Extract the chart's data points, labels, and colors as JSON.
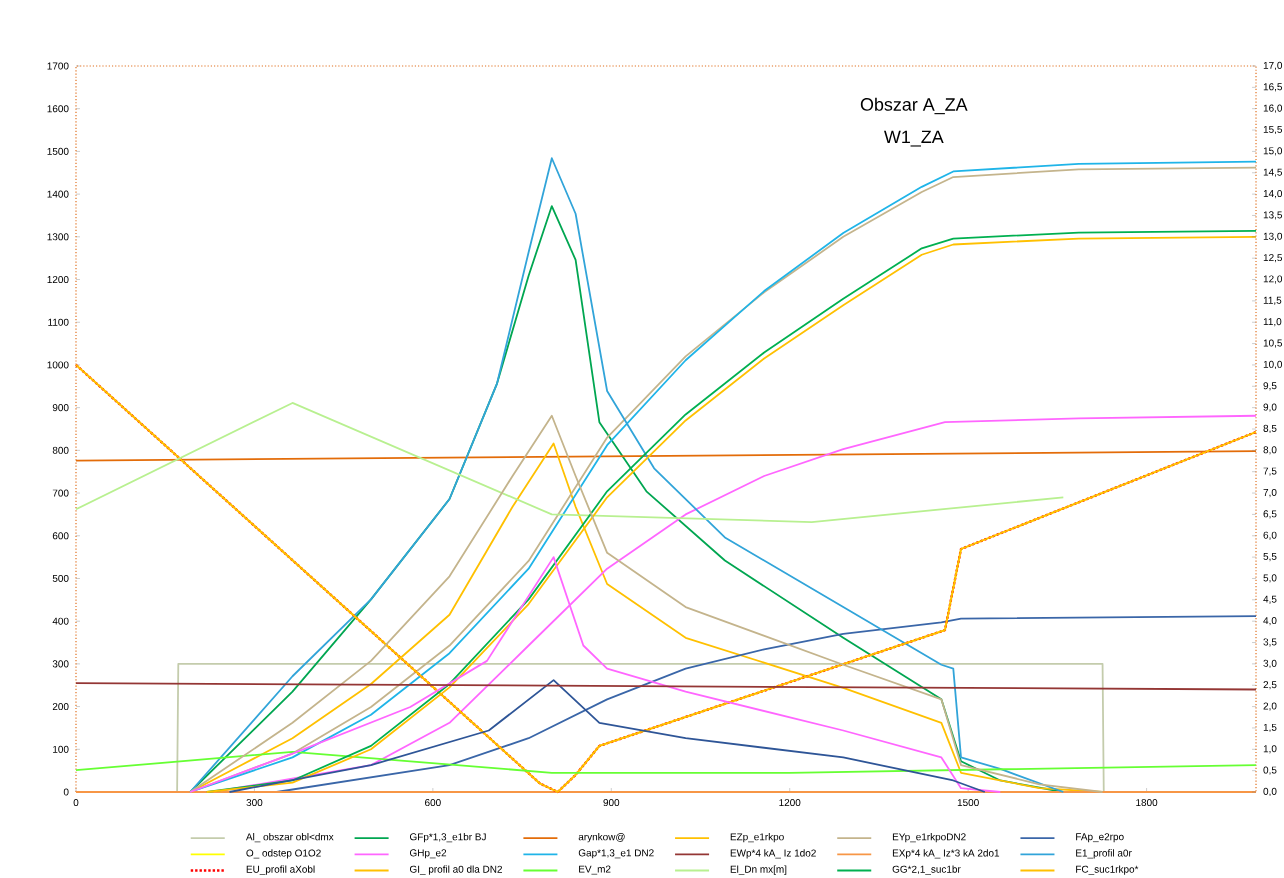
{
  "chart_data": {
    "type": "line",
    "title": "Obszar A_ZA",
    "subtitle": "W1_ZA",
    "legend": "bottom",
    "xlim": [
      0,
      1984
    ],
    "xticks": [
      0,
      300,
      600,
      900,
      1200,
      1500,
      1800
    ],
    "ylim": [
      0,
      1700
    ],
    "yticks": [
      0,
      100,
      200,
      300,
      400,
      500,
      600,
      700,
      800,
      900,
      1000,
      1100,
      1200,
      1300,
      1400,
      1500,
      1600,
      1700
    ],
    "y2lim": [
      0,
      17
    ],
    "y2ticks": [
      {
        "value": 0,
        "label": "0,0"
      },
      {
        "value": 0.5,
        "label": "0,5"
      },
      {
        "value": 1,
        "label": "1,0"
      },
      {
        "value": 1.5,
        "label": "1,5"
      },
      {
        "value": 2,
        "label": "2,0"
      },
      {
        "value": 2.5,
        "label": "2,5"
      },
      {
        "value": 3,
        "label": "3,0"
      },
      {
        "value": 3.5,
        "label": "3,5"
      },
      {
        "value": 4,
        "label": "4,0"
      },
      {
        "value": 4.5,
        "label": "4,5"
      },
      {
        "value": 5,
        "label": "5,0"
      },
      {
        "value": 5.5,
        "label": "5,5"
      },
      {
        "value": 6,
        "label": "6,0"
      },
      {
        "value": 6.5,
        "label": "6,5"
      },
      {
        "value": 7,
        "label": "7,0"
      },
      {
        "value": 7.5,
        "label": "7,5"
      },
      {
        "value": 8,
        "label": "8,0"
      },
      {
        "value": 8.5,
        "label": "8,5"
      },
      {
        "value": 9,
        "label": "9,0"
      },
      {
        "value": 9.5,
        "label": "9,5"
      },
      {
        "value": 10,
        "label": "10,0"
      },
      {
        "value": 10.5,
        "label": "10,5"
      },
      {
        "value": 11,
        "label": "11,0"
      },
      {
        "value": 11.5,
        "label": "11,5"
      },
      {
        "value": 12,
        "label": "12,0"
      },
      {
        "value": 12.5,
        "label": "12,5"
      },
      {
        "value": 13,
        "label": "13,0"
      },
      {
        "value": 13.5,
        "label": "13,5"
      },
      {
        "value": 14,
        "label": "14,0"
      },
      {
        "value": 14.5,
        "label": "14,5"
      },
      {
        "value": 15,
        "label": "15,0"
      },
      {
        "value": 15.5,
        "label": "15,5"
      },
      {
        "value": 16,
        "label": "16,0"
      },
      {
        "value": 16.5,
        "label": "16,5"
      },
      {
        "value": 17,
        "label": "17,0"
      }
    ],
    "series": [
      {
        "name": "Al_ obszar obl<dmx",
        "color": "#c4ccac",
        "x": [
          0,
          170,
          172,
          1726,
          1728,
          1984
        ],
        "values": [
          0,
          0,
          300,
          300,
          0,
          0
        ]
      },
      {
        "name": "GFp*1,3_e1br BJ",
        "color": "#00a651",
        "x": [
          192,
          364,
          496,
          628,
          708,
          761,
          800,
          840,
          880,
          959,
          1091,
          1290,
          1455,
          1488,
          1554,
          1660
        ],
        "values": [
          0,
          235,
          451,
          686,
          957,
          1209,
          1372,
          1246,
          866,
          704,
          542,
          361,
          217,
          72,
          27,
          0
        ]
      },
      {
        "name": "arynkow@",
        "color": "#e36c09",
        "x": [
          0,
          1984
        ],
        "values": [
          776,
          798
        ]
      },
      {
        "name": "EZp_e1rkpo",
        "color": "#ffc000",
        "x": [
          192,
          364,
          496,
          628,
          734,
          803,
          840,
          893,
          1025,
          1290,
          1455,
          1488,
          1620,
          1726
        ],
        "values": [
          0,
          126,
          253,
          415,
          668,
          816,
          668,
          487,
          361,
          244,
          162,
          45,
          9,
          0
        ]
      },
      {
        "name": "EYp_e1rkpoDN2",
        "color": "#c4b48c",
        "x": [
          192,
          364,
          496,
          628,
          761,
          893,
          1025,
          1157,
          1290,
          1422,
          1475,
          1686,
          1984
        ],
        "values": [
          0,
          90,
          199,
          343,
          541,
          830,
          1020,
          1170,
          1300,
          1405,
          1440,
          1458,
          1462
        ]
      },
      {
        "name": "FAp_e2rpo",
        "color": "#3a66a8",
        "x": [
          337,
          628,
          761,
          893,
          1025,
          1157,
          1290,
          1455,
          1488,
          1984
        ],
        "values": [
          0,
          63,
          126,
          217,
          289,
          334,
          370,
          397,
          406,
          412
        ]
      },
      {
        "name": "O_ odstep O1O2",
        "color": "#ffff00",
        "x": [
          0,
          780,
          810,
          840,
          880,
          1461,
          1488,
          1984
        ],
        "values": [
          1000,
          20,
          0,
          40,
          108,
          379,
          569,
          843
        ]
      },
      {
        "name": "GHp_e2",
        "color": "#ff66ff",
        "x": [
          231,
          496,
          628,
          761,
          893,
          1025,
          1157,
          1290,
          1461,
          1686,
          1984
        ],
        "values": [
          0,
          63,
          162,
          343,
          523,
          650,
          740,
          803,
          866,
          875,
          881
        ]
      },
      {
        "name": "Gap*1,3_e1 DN2",
        "color": "#1fb4e8",
        "x": [
          192,
          364,
          496,
          628,
          761,
          893,
          1025,
          1157,
          1290,
          1422,
          1475,
          1686,
          1984
        ],
        "values": [
          0,
          81,
          181,
          325,
          523,
          812,
          1011,
          1173,
          1309,
          1417,
          1453,
          1471,
          1476
        ]
      },
      {
        "name": "EWp*4 kA_ Iz 1do2",
        "color": "#943634",
        "axis": "y2",
        "x": [
          0,
          1984
        ],
        "values": [
          2.55,
          2.4
        ]
      },
      {
        "name": "EXp*4 kA_ Iz*3 kA 2do1",
        "color": "#f79646",
        "x": [
          0,
          1984
        ],
        "values": [
          0,
          0
        ]
      },
      {
        "name": "E1_profil a0r",
        "color": "#31a4d9",
        "x": [
          192,
          364,
          496,
          628,
          708,
          761,
          800,
          840,
          893,
          972,
          1091,
          1290,
          1455,
          1475,
          1488,
          1554,
          1660
        ],
        "values": [
          0,
          271,
          451,
          686,
          957,
          1264,
          1484,
          1354,
          939,
          758,
          596,
          433,
          298,
          289,
          81,
          54,
          0
        ]
      },
      {
        "name": "EU_profil aXobl",
        "color": "#ff0000",
        "line_style": "dotted",
        "x": [
          0,
          780,
          810,
          840,
          880,
          1461,
          1488,
          1984
        ],
        "values": [
          1000,
          20,
          0,
          40,
          108,
          379,
          569,
          843
        ]
      },
      {
        "name": "GI_ profil a0 dla DN2",
        "color": "#ffc000",
        "x": [
          0,
          780,
          810,
          840,
          880,
          1461,
          1488,
          1984
        ],
        "values": [
          1000,
          20,
          0,
          40,
          108,
          379,
          569,
          843
        ]
      },
      {
        "name": "EV_m2",
        "color": "#66ff33",
        "x": [
          0,
          364,
          800,
          1200,
          1984
        ],
        "values": [
          51,
          94,
          45,
          45,
          63
        ]
      },
      {
        "name": "El_Dn mx[m]",
        "color": "#b8f090",
        "x": [
          0,
          364,
          800,
          1237,
          1660
        ],
        "values": [
          662,
          911,
          650,
          632,
          690
        ]
      },
      {
        "name": "GG*2,1_suc1br",
        "color": "#00b050",
        "x": [
          220,
          364,
          496,
          628,
          761,
          893,
          1025,
          1157,
          1290,
          1422,
          1475,
          1686,
          1984
        ],
        "values": [
          0,
          27,
          108,
          253,
          451,
          704,
          884,
          1029,
          1155,
          1273,
          1296,
          1310,
          1314
        ]
      },
      {
        "name": "FC_suc1rkpo*",
        "color": "#ffc000",
        "x": [
          220,
          364,
          496,
          628,
          761,
          893,
          1025,
          1157,
          1290,
          1422,
          1475,
          1686,
          1984
        ],
        "values": [
          0,
          22,
          100,
          245,
          440,
          690,
          870,
          1015,
          1140,
          1258,
          1282,
          1296,
          1300
        ]
      },
      {
        "color": "#c4b48c",
        "x": [
          192,
          364,
          496,
          628,
          734,
          800,
          840,
          893,
          1025,
          1290,
          1455,
          1488,
          1620,
          1726
        ],
        "values": [
          0,
          162,
          307,
          505,
          740,
          881,
          740,
          560,
          433,
          298,
          217,
          63,
          18,
          0
        ]
      },
      {
        "color": "#ff66ff",
        "x": [
          192,
          364,
          562,
          691,
          803,
          853,
          893,
          1025,
          1290,
          1455,
          1488,
          1554
        ],
        "values": [
          0,
          90,
          199,
          307,
          550,
          343,
          289,
          235,
          144,
          81,
          9,
          0
        ]
      },
      {
        "color": "#2e5597",
        "x": [
          258,
          496,
          694,
          803,
          880,
          1025,
          1290,
          1475,
          1528
        ],
        "values": [
          0,
          63,
          144,
          262,
          162,
          126,
          81,
          27,
          0
        ]
      }
    ]
  }
}
